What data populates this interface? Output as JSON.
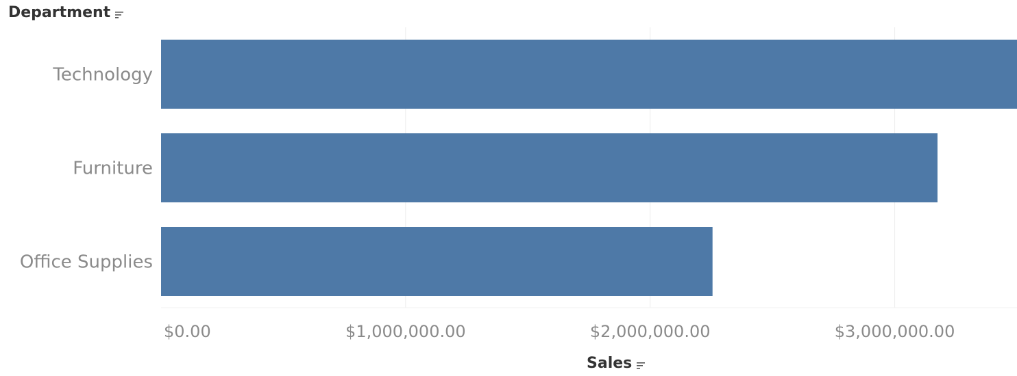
{
  "header": {
    "rows_field": "Department",
    "columns_field": "Sales",
    "rows_sort_icon": "sort-descending-icon",
    "columns_sort_icon": "sort-descending-icon"
  },
  "chart_data": {
    "type": "bar",
    "orientation": "horizontal",
    "categories": [
      "Technology",
      "Furniture",
      "Office Supplies"
    ],
    "values": [
      3500000,
      3175000,
      2255000
    ],
    "title": "",
    "xlabel": "Sales",
    "ylabel": "Department",
    "xlim": [
      0,
      3500000
    ],
    "x_ticks": [
      0,
      1000000,
      2000000,
      3000000
    ],
    "x_tick_labels": [
      "$0.00",
      "$1,000,000.00",
      "$2,000,000.00",
      "$3,000,000.00"
    ],
    "grid": true,
    "bar_color": "#4e79a7",
    "gridline_color": "#ececec",
    "label_color": "#8a8a8a"
  }
}
